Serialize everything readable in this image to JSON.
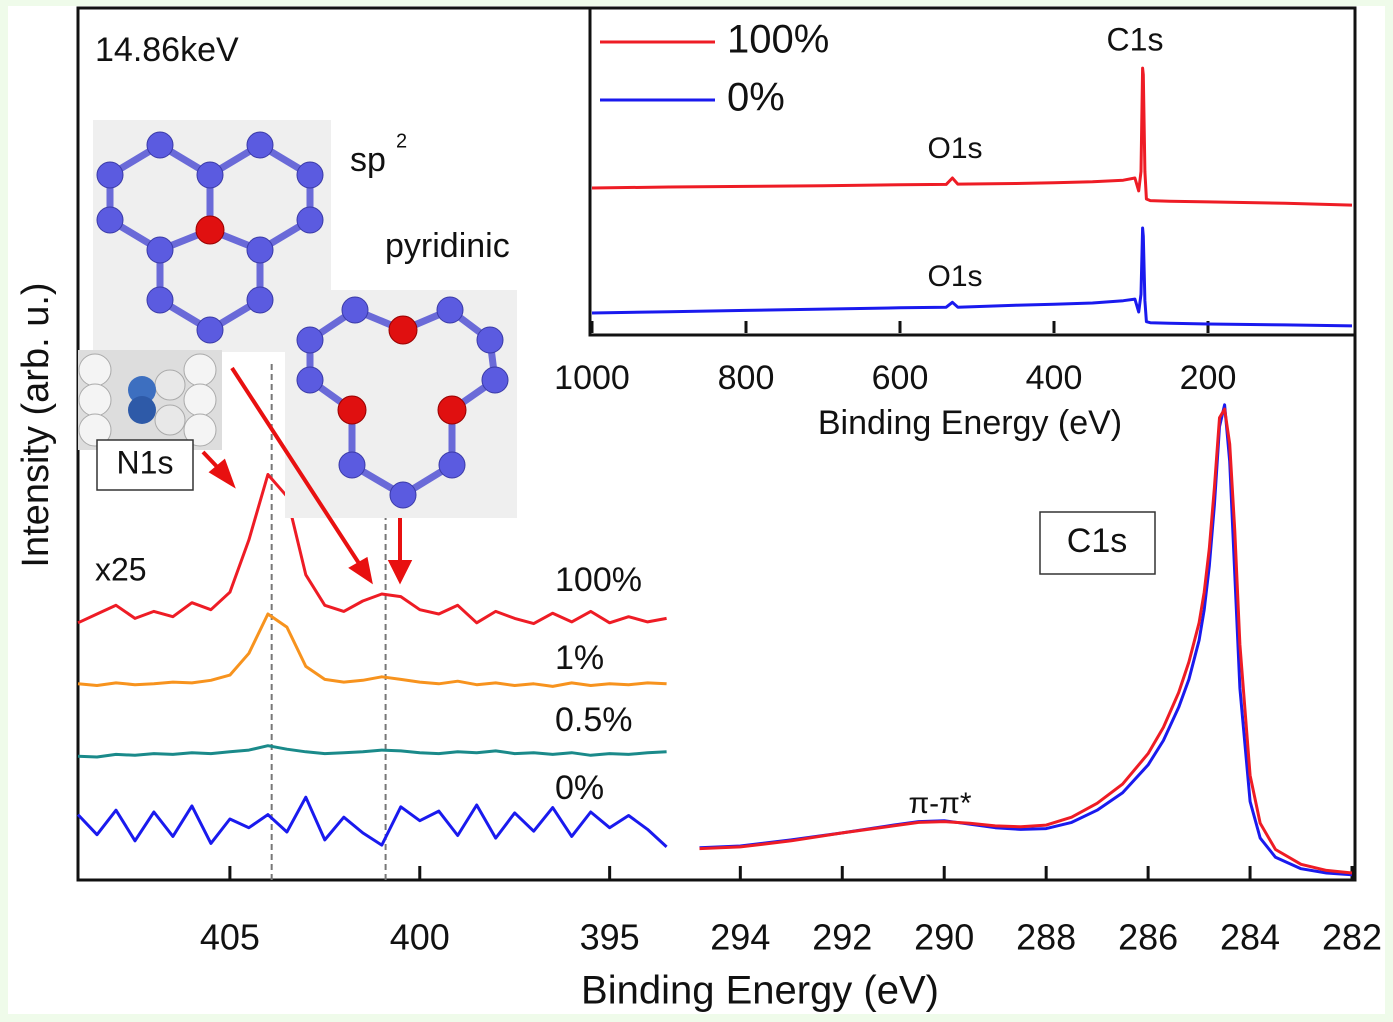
{
  "annotations": {
    "energy": "14.86keV",
    "sp": "sp",
    "sp_sup": "2",
    "pyridinic": "pyridinic",
    "n1s": "N1s",
    "scale": "x25",
    "c1s_box": "C1s",
    "pi": "π-π*"
  },
  "y_label": "Intensity (arb. u.)",
  "chart_data": [
    {
      "type": "line",
      "x_label": "Binding Energy (eV)",
      "xlim": [
        409,
        393.2
      ],
      "xticks": [
        405,
        400,
        395
      ],
      "ylim": [
        0,
        100
      ],
      "reference_lines": [
        403.9,
        400.9
      ],
      "x": [
        409,
        408.5,
        408,
        407.5,
        407,
        406.5,
        406,
        405.5,
        405,
        404.5,
        404,
        403.5,
        403,
        402.5,
        402,
        401.5,
        401,
        400.5,
        400,
        399.5,
        399,
        398.5,
        398,
        397.5,
        397,
        396.5,
        396,
        395.5,
        395,
        394.5,
        394,
        393.5
      ],
      "series": [
        {
          "name": "100%",
          "color": "#ee1c25",
          "values": [
            29.5,
            30.5,
            31.5,
            30,
            30.8,
            30.2,
            31.8,
            31,
            33,
            39,
            46.5,
            44,
            35,
            31.5,
            30.8,
            32,
            32.8,
            32.5,
            31,
            30.5,
            31.5,
            29.5,
            30.8,
            30,
            29.4,
            30.6,
            29.6,
            30.8,
            29.5,
            30.2,
            29.6,
            30
          ]
        },
        {
          "name": "1%",
          "color": "#f7931e",
          "values": [
            22.5,
            22.3,
            22.6,
            22.4,
            22.5,
            22.7,
            22.6,
            22.9,
            23.5,
            26,
            30.5,
            29,
            24.5,
            23,
            22.7,
            22.9,
            23.3,
            23,
            22.7,
            22.5,
            22.8,
            22.4,
            22.6,
            22.3,
            22.5,
            22.2,
            22.6,
            22.3,
            22.5,
            22.4,
            22.6,
            22.5
          ]
        },
        {
          "name": "0.5%",
          "color": "#1a8a8a",
          "values": [
            14.2,
            14.1,
            14.4,
            14.3,
            14.5,
            14.4,
            14.6,
            14.5,
            14.7,
            14.9,
            15.4,
            15,
            14.7,
            14.5,
            14.6,
            14.7,
            14.9,
            14.8,
            14.6,
            14.5,
            14.7,
            14.6,
            14.8,
            14.5,
            14.6,
            14.4,
            14.6,
            14.3,
            14.5,
            14.4,
            14.6,
            14.7
          ]
        },
        {
          "name": "0%",
          "color": "#1a1aee",
          "values": [
            7.5,
            5.2,
            8,
            4.5,
            7.8,
            5,
            8.5,
            4.2,
            7,
            6,
            7.5,
            5.5,
            9.5,
            4.6,
            7.2,
            5.4,
            4,
            8.4,
            6.8,
            7.9,
            5.1,
            8.6,
            4.8,
            7.7,
            5.6,
            8.3,
            5,
            7.8,
            6,
            7.4,
            5.8,
            3.8
          ]
        }
      ]
    },
    {
      "type": "line",
      "xlim": [
        294.85,
        282
      ],
      "xticks": [
        294,
        292,
        290,
        288,
        286,
        284,
        282
      ],
      "ylim": [
        0,
        100
      ],
      "x": [
        294.8,
        294,
        293,
        292,
        291,
        290.5,
        290,
        289.5,
        289,
        288.5,
        288,
        287.5,
        287,
        286.5,
        286,
        285.7,
        285.4,
        285.2,
        285,
        284.9,
        284.8,
        284.7,
        284.6,
        284.5,
        284.4,
        284.3,
        284.2,
        284,
        283.8,
        283.5,
        283,
        282.5,
        282
      ],
      "series": [
        {
          "color": "#1a1aee",
          "values": [
            3.7,
            3.9,
            4.6,
            5.4,
            6.3,
            6.7,
            6.8,
            6.4,
            6,
            5.8,
            5.9,
            6.6,
            8,
            10,
            13.2,
            16,
            19.8,
            23,
            27.5,
            31,
            36,
            43,
            52,
            54.5,
            48,
            35,
            22,
            9,
            4.8,
            2.6,
            1.3,
            0.8,
            0.6
          ]
        },
        {
          "color": "#ee1c25",
          "values": [
            3.6,
            3.8,
            4.5,
            5.4,
            6.2,
            6.6,
            6.7,
            6.5,
            6.2,
            6.1,
            6.3,
            7.2,
            8.8,
            11,
            14.5,
            17.5,
            21.5,
            25,
            29.5,
            33,
            38,
            45,
            53,
            54,
            50,
            40,
            27,
            12,
            6.5,
            3.5,
            1.8,
            1.1,
            0.8
          ]
        }
      ]
    },
    {
      "type": "line",
      "x_label": "Binding Energy (eV)",
      "xlim": [
        1000,
        13
      ],
      "xticks": [
        1000,
        800,
        600,
        400,
        200
      ],
      "ylim": [
        0,
        100
      ],
      "annotations": {
        "c1s": "C1s",
        "o1s_top": "O1s",
        "o1s_bottom": "O1s"
      },
      "x": [
        1000,
        900,
        800,
        700,
        600,
        540,
        532,
        525,
        450,
        400,
        350,
        310,
        295,
        290,
        287,
        285,
        284,
        282,
        280,
        275,
        250,
        200,
        100,
        13
      ],
      "series": [
        {
          "name": "100%",
          "color": "#ee1c25",
          "values": [
            44.9,
            45.2,
            45.4,
            45.6,
            45.9,
            46,
            48,
            46.1,
            46.3,
            46.5,
            46.8,
            47.3,
            48,
            44,
            50,
            82,
            80,
            50,
            41.5,
            41,
            40.8,
            40.6,
            40.2,
            39.6
          ]
        },
        {
          "name": "0%",
          "color": "#1a1aee",
          "values": [
            6.2,
            6.6,
            7,
            7.4,
            7.8,
            8,
            9.5,
            8,
            8.6,
            8.9,
            9.3,
            10,
            10.5,
            6.5,
            12,
            32.5,
            30,
            10,
            3.5,
            3.2,
            3,
            2.8,
            2.5,
            2.2
          ]
        }
      ]
    }
  ]
}
